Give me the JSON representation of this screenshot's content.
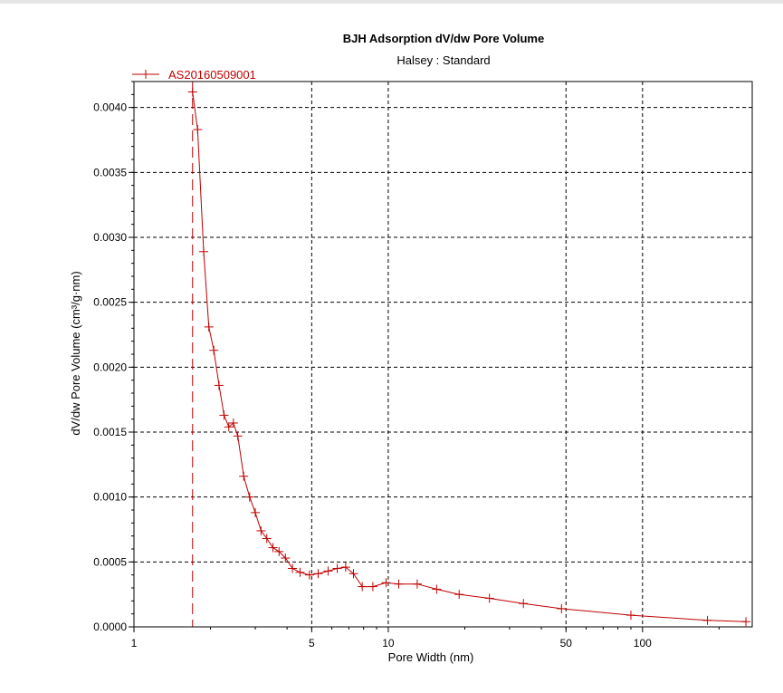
{
  "colors": {
    "series": "#c00000",
    "grid": "#000000",
    "axis": "#000000",
    "background": "#ffffff"
  },
  "chart_data": {
    "type": "line",
    "title": "BJH Adsorption dV/dw Pore Volume",
    "subtitle": "Halsey : Standard",
    "xlabel": "Pore Width (nm)",
    "ylabel": "dV/dw Pore Volume (cm³/g·nm)",
    "x_scale": "log",
    "xlim": [
      1,
      270
    ],
    "ylim": [
      0,
      0.0042
    ],
    "x_ticks": [
      {
        "value": 1,
        "label": "1"
      },
      {
        "value": 5,
        "label": "5"
      },
      {
        "value": 10,
        "label": "10"
      },
      {
        "value": 50,
        "label": "50"
      },
      {
        "value": 100,
        "label": "100"
      }
    ],
    "x_gridlines": [
      5,
      10,
      50,
      100
    ],
    "y_ticks": [
      {
        "value": 0,
        "label": "0.0000"
      },
      {
        "value": 0.0005,
        "label": "0.0005"
      },
      {
        "value": 0.001,
        "label": "0.0010"
      },
      {
        "value": 0.0015,
        "label": "0.0015"
      },
      {
        "value": 0.002,
        "label": "0.0020"
      },
      {
        "value": 0.0025,
        "label": "0.0025"
      },
      {
        "value": 0.003,
        "label": "0.0030"
      },
      {
        "value": 0.0035,
        "label": "0.0035"
      },
      {
        "value": 0.004,
        "label": "0.0040"
      }
    ],
    "grid": true,
    "legend_position": "top-left",
    "vertical_reference_line_x": 1.7,
    "series": [
      {
        "name": "AS20160509001",
        "color": "#c00000",
        "marker": "plus",
        "points": [
          [
            1.7,
            0.00412
          ],
          [
            1.78,
            0.00383
          ],
          [
            1.88,
            0.00289
          ],
          [
            1.97,
            0.00231
          ],
          [
            2.06,
            0.00213
          ],
          [
            2.16,
            0.00186
          ],
          [
            2.26,
            0.00163
          ],
          [
            2.36,
            0.00154
          ],
          [
            2.46,
            0.00157
          ],
          [
            2.56,
            0.00147
          ],
          [
            2.7,
            0.00116
          ],
          [
            2.85,
            0.001
          ],
          [
            3.0,
            0.00088
          ],
          [
            3.16,
            0.00074
          ],
          [
            3.33,
            0.00068
          ],
          [
            3.52,
            0.00061
          ],
          [
            3.72,
            0.00058
          ],
          [
            3.94,
            0.00053
          ],
          [
            4.2,
            0.00045
          ],
          [
            4.5,
            0.00042
          ],
          [
            4.9,
            0.0004
          ],
          [
            5.3,
            0.00041
          ],
          [
            5.8,
            0.00043
          ],
          [
            6.3,
            0.00045
          ],
          [
            6.8,
            0.00046
          ],
          [
            7.3,
            0.00041
          ],
          [
            7.9,
            0.00031
          ],
          [
            8.7,
            0.00031
          ],
          [
            9.8,
            0.00034
          ],
          [
            11.0,
            0.00033
          ],
          [
            13.0,
            0.00033
          ],
          [
            15.5,
            0.00029
          ],
          [
            19.0,
            0.00025
          ],
          [
            25.0,
            0.00022
          ],
          [
            34.0,
            0.00018
          ],
          [
            48.0,
            0.00014
          ],
          [
            90.0,
            9e-05
          ],
          [
            180.0,
            5e-05
          ],
          [
            255.0,
            4e-05
          ]
        ]
      }
    ]
  }
}
